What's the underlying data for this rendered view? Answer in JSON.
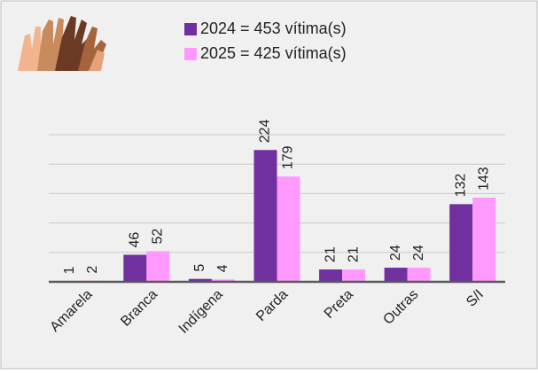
{
  "chart_data": {
    "type": "bar",
    "categories": [
      "Amarela",
      "Branca",
      "Indígena",
      "Parda",
      "Preta",
      "Outras",
      "S/I"
    ],
    "series": [
      {
        "name": "2024 = 453 vítima(s)",
        "color": "#7030a0",
        "values": [
          1,
          46,
          5,
          224,
          21,
          24,
          132
        ]
      },
      {
        "name": "2025 = 425 vítima(s)",
        "color": "#ff99ff",
        "values": [
          2,
          52,
          4,
          179,
          21,
          24,
          143
        ]
      }
    ],
    "ylim": [
      0,
      250
    ],
    "yticks": [
      0,
      50,
      100,
      150,
      200,
      250
    ],
    "grid": true
  }
}
